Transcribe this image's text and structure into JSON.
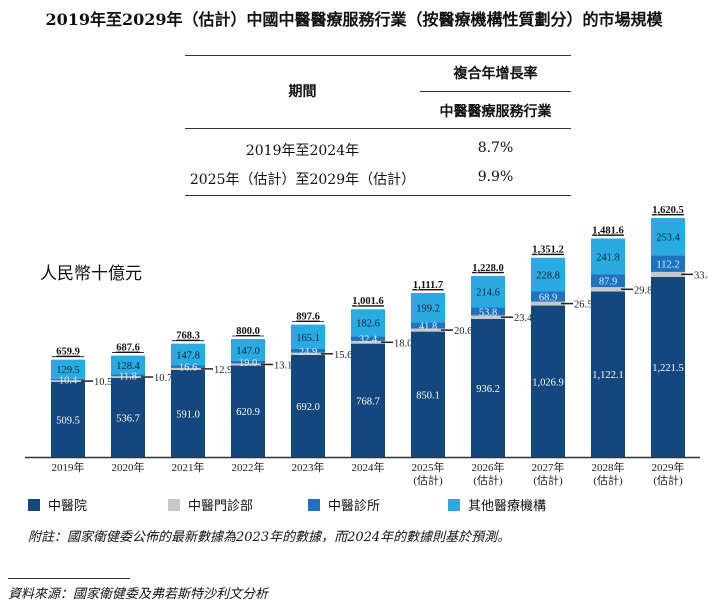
{
  "title": "2019年至2029年（估計）中國中醫醫療服務行業（按醫療機構性質劃分）的市場規模",
  "table": {
    "col1_header": "期間",
    "col2_header": "複合年增長率",
    "col2_subheader": "中醫醫療服務行業",
    "rows": [
      {
        "period": "2019年至2024年",
        "cagr": "8.7%"
      },
      {
        "period": "2025年（估計）至2029年（估計）",
        "cagr": "9.9%"
      }
    ]
  },
  "chart_data": {
    "type": "bar",
    "stacked": true,
    "ylabel": "人民幣十億元",
    "categories": [
      [
        "2019年"
      ],
      [
        "2020年"
      ],
      [
        "2021年"
      ],
      [
        "2022年"
      ],
      [
        "2023年"
      ],
      [
        "2024年"
      ],
      [
        "2025年",
        "(估計)"
      ],
      [
        "2026年",
        "(估計)"
      ],
      [
        "2027年",
        "(估計)"
      ],
      [
        "2028年",
        "(估計)"
      ],
      [
        "2029年",
        "(估計)"
      ]
    ],
    "series": [
      {
        "name": "中醫院",
        "color": "#14477e",
        "values": [
          509.5,
          536.7,
          591.0,
          620.9,
          692.0,
          768.7,
          850.1,
          936.2,
          1026.9,
          1122.1,
          1221.5
        ]
      },
      {
        "name": "中醫門診部",
        "color": "#c8c8c8",
        "values": [
          10.5,
          10.7,
          12.9,
          13.1,
          15.6,
          18.0,
          20.6,
          23.4,
          26.5,
          29.8,
          33.4
        ]
      },
      {
        "name": "中醫診所",
        "color": "#1e73be",
        "values": [
          10.4,
          11.8,
          16.6,
          19.0,
          24.9,
          32.4,
          41.8,
          53.8,
          68.9,
          87.9,
          112.2
        ]
      },
      {
        "name": "其他醫療機構",
        "color": "#29abe2",
        "values": [
          129.5,
          128.4,
          147.8,
          147.0,
          165.1,
          182.6,
          199.2,
          214.6,
          228.8,
          241.8,
          253.4
        ]
      }
    ],
    "totals": [
      "659.9",
      "687.6",
      "768.3",
      "800.0",
      "897.6",
      "1,001.6",
      "1,111.7",
      "1,228.0",
      "1,351.2",
      "1,481.6",
      "1,620.5"
    ],
    "labels": {
      "s0": [
        "509.5",
        "536.7",
        "591.0",
        "620.9",
        "692.0",
        "768.7",
        "850.1",
        "936.2",
        "1,026.9",
        "1,122.1",
        "1,221.5"
      ],
      "s1": [
        "10.5",
        "10.7",
        "12.9",
        "13.1",
        "15.6",
        "18.0",
        "20.6",
        "23.4",
        "26.5",
        "29.8",
        "33.4"
      ],
      "s2": [
        "10.4",
        "11.8",
        "16.6",
        "19.0",
        "24.9",
        "32.4",
        "41.8",
        "53.8",
        "68.9",
        "87.9",
        "112.2"
      ],
      "s3": [
        "129.5",
        "128.4",
        "147.8",
        "147.0",
        "165.1",
        "182.6",
        "199.2",
        "214.6",
        "228.8",
        "241.8",
        "253.4"
      ]
    }
  },
  "note": "附註：國家衛健委公佈的最新數據為2023年的數據，而2024年的數據則基於預測。",
  "source": "資料來源：國家衛健委及弗若斯特沙利文分析"
}
